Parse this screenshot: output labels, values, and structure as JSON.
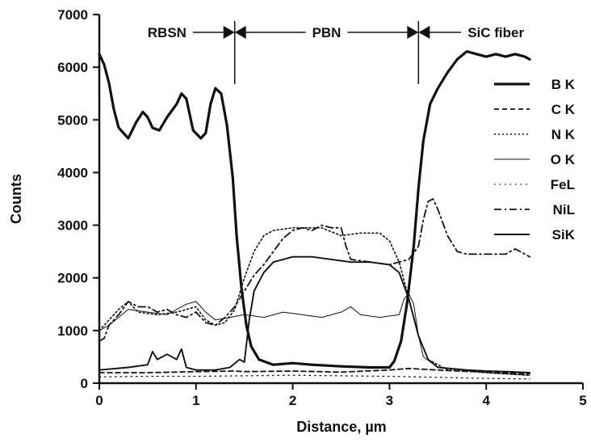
{
  "chart_data": {
    "type": "line",
    "title": "",
    "xlabel": "Distance, µm",
    "ylabel": "Counts",
    "xlim": [
      0,
      5
    ],
    "ylim": [
      0,
      7000
    ],
    "x_ticks": [
      "0",
      "1",
      "2",
      "3",
      "4",
      "5"
    ],
    "y_ticks": [
      "0",
      "1000",
      "2000",
      "3000",
      "4000",
      "5000",
      "6000",
      "7000"
    ],
    "grid": false,
    "legend_position": "right",
    "regions": [
      {
        "label": "RBSN",
        "from": 0,
        "to": 1.4
      },
      {
        "label": "PBN",
        "from": 1.4,
        "to": 3.3
      },
      {
        "label": "SiC fiber",
        "from": 3.3,
        "to": 5
      }
    ],
    "series": [
      {
        "name": "B K",
        "style": "thick-solid",
        "points": [
          [
            0,
            6250
          ],
          [
            0.05,
            6050
          ],
          [
            0.1,
            5700
          ],
          [
            0.15,
            5200
          ],
          [
            0.2,
            4850
          ],
          [
            0.3,
            4650
          ],
          [
            0.38,
            4950
          ],
          [
            0.45,
            5150
          ],
          [
            0.5,
            5050
          ],
          [
            0.55,
            4850
          ],
          [
            0.62,
            4800
          ],
          [
            0.7,
            5050
          ],
          [
            0.8,
            5300
          ],
          [
            0.85,
            5500
          ],
          [
            0.9,
            5400
          ],
          [
            0.97,
            4800
          ],
          [
            1.05,
            4650
          ],
          [
            1.1,
            4750
          ],
          [
            1.15,
            5300
          ],
          [
            1.2,
            5600
          ],
          [
            1.26,
            5500
          ],
          [
            1.32,
            4900
          ],
          [
            1.38,
            3900
          ],
          [
            1.42,
            2800
          ],
          [
            1.47,
            1800
          ],
          [
            1.52,
            1100
          ],
          [
            1.57,
            700
          ],
          [
            1.65,
            450
          ],
          [
            1.8,
            350
          ],
          [
            2.0,
            380
          ],
          [
            2.2,
            350
          ],
          [
            2.5,
            320
          ],
          [
            2.8,
            300
          ],
          [
            3.0,
            300
          ],
          [
            3.05,
            420
          ],
          [
            3.12,
            800
          ],
          [
            3.18,
            1500
          ],
          [
            3.25,
            2600
          ],
          [
            3.3,
            3700
          ],
          [
            3.35,
            4600
          ],
          [
            3.42,
            5300
          ],
          [
            3.5,
            5600
          ],
          [
            3.6,
            5900
          ],
          [
            3.7,
            6150
          ],
          [
            3.8,
            6300
          ],
          [
            3.9,
            6250
          ],
          [
            4.0,
            6200
          ],
          [
            4.1,
            6250
          ],
          [
            4.2,
            6200
          ],
          [
            4.3,
            6250
          ],
          [
            4.4,
            6200
          ],
          [
            4.45,
            6150
          ]
        ]
      },
      {
        "name": "C K",
        "style": "dashed",
        "points": [
          [
            0,
            200
          ],
          [
            0.5,
            200
          ],
          [
            1.0,
            220
          ],
          [
            1.4,
            230
          ],
          [
            1.5,
            220
          ],
          [
            2.0,
            230
          ],
          [
            2.5,
            210
          ],
          [
            3.0,
            250
          ],
          [
            3.2,
            280
          ],
          [
            3.4,
            260
          ],
          [
            3.6,
            240
          ],
          [
            4.0,
            210
          ],
          [
            4.45,
            180
          ]
        ]
      },
      {
        "name": "N K",
        "style": "dotted",
        "points": [
          [
            0,
            1000
          ],
          [
            0.2,
            1400
          ],
          [
            0.3,
            1550
          ],
          [
            0.4,
            1350
          ],
          [
            0.6,
            1300
          ],
          [
            0.8,
            1350
          ],
          [
            1.0,
            1450
          ],
          [
            1.1,
            1200
          ],
          [
            1.2,
            1100
          ],
          [
            1.3,
            1150
          ],
          [
            1.4,
            1400
          ],
          [
            1.5,
            2000
          ],
          [
            1.6,
            2500
          ],
          [
            1.7,
            2800
          ],
          [
            1.8,
            2900
          ],
          [
            2.0,
            2950
          ],
          [
            2.3,
            2950
          ],
          [
            2.5,
            2800
          ],
          [
            2.7,
            2850
          ],
          [
            2.9,
            2850
          ],
          [
            3.0,
            2700
          ],
          [
            3.1,
            2300
          ],
          [
            3.2,
            1600
          ],
          [
            3.3,
            900
          ],
          [
            3.4,
            450
          ],
          [
            3.6,
            250
          ],
          [
            4.0,
            200
          ],
          [
            4.45,
            150
          ]
        ]
      },
      {
        "name": "O K",
        "style": "thin-solid",
        "points": [
          [
            0,
            1000
          ],
          [
            0.1,
            1100
          ],
          [
            0.2,
            1250
          ],
          [
            0.3,
            1400
          ],
          [
            0.5,
            1350
          ],
          [
            0.7,
            1300
          ],
          [
            0.9,
            1500
          ],
          [
            1.0,
            1550
          ],
          [
            1.1,
            1350
          ],
          [
            1.2,
            1200
          ],
          [
            1.35,
            1250
          ],
          [
            1.5,
            1300
          ],
          [
            1.7,
            1250
          ],
          [
            1.9,
            1350
          ],
          [
            2.1,
            1300
          ],
          [
            2.3,
            1250
          ],
          [
            2.5,
            1350
          ],
          [
            2.6,
            1450
          ],
          [
            2.7,
            1300
          ],
          [
            2.9,
            1250
          ],
          [
            3.1,
            1300
          ],
          [
            3.15,
            1600
          ],
          [
            3.2,
            1700
          ],
          [
            3.25,
            1500
          ],
          [
            3.3,
            900
          ],
          [
            3.35,
            500
          ],
          [
            3.5,
            300
          ],
          [
            4.0,
            200
          ],
          [
            4.45,
            150
          ]
        ]
      },
      {
        "name": "FeL",
        "style": "sparse-dotted",
        "points": [
          [
            0,
            120
          ],
          [
            0.5,
            130
          ],
          [
            1.0,
            130
          ],
          [
            1.5,
            140
          ],
          [
            2.0,
            150
          ],
          [
            2.5,
            140
          ],
          [
            3.0,
            130
          ],
          [
            3.5,
            110
          ],
          [
            4.0,
            90
          ],
          [
            4.45,
            80
          ]
        ]
      },
      {
        "name": "NiL",
        "style": "dash-dot",
        "points": [
          [
            0,
            800
          ],
          [
            0.05,
            850
          ],
          [
            0.1,
            1100
          ],
          [
            0.2,
            1300
          ],
          [
            0.3,
            1550
          ],
          [
            0.4,
            1450
          ],
          [
            0.5,
            1450
          ],
          [
            0.6,
            1350
          ],
          [
            0.7,
            1400
          ],
          [
            0.8,
            1300
          ],
          [
            0.9,
            1250
          ],
          [
            1.0,
            1350
          ],
          [
            1.1,
            1150
          ],
          [
            1.2,
            1100
          ],
          [
            1.3,
            1250
          ],
          [
            1.4,
            1450
          ],
          [
            1.5,
            1750
          ],
          [
            1.6,
            2050
          ],
          [
            1.7,
            2250
          ],
          [
            1.8,
            2500
          ],
          [
            1.9,
            2750
          ],
          [
            2.0,
            2900
          ],
          [
            2.1,
            2950
          ],
          [
            2.2,
            2900
          ],
          [
            2.3,
            3000
          ],
          [
            2.4,
            2950
          ],
          [
            2.5,
            2950
          ],
          [
            2.55,
            2600
          ],
          [
            2.6,
            2350
          ],
          [
            2.8,
            2300
          ],
          [
            3.0,
            2250
          ],
          [
            3.2,
            2350
          ],
          [
            3.3,
            2600
          ],
          [
            3.35,
            3100
          ],
          [
            3.4,
            3450
          ],
          [
            3.45,
            3500
          ],
          [
            3.5,
            3300
          ],
          [
            3.6,
            2800
          ],
          [
            3.7,
            2500
          ],
          [
            3.8,
            2450
          ],
          [
            4.0,
            2450
          ],
          [
            4.2,
            2450
          ],
          [
            4.3,
            2550
          ],
          [
            4.45,
            2400
          ]
        ]
      },
      {
        "name": "SiK",
        "style": "medium-solid",
        "points": [
          [
            0,
            250
          ],
          [
            0.3,
            300
          ],
          [
            0.5,
            350
          ],
          [
            0.55,
            600
          ],
          [
            0.6,
            450
          ],
          [
            0.7,
            550
          ],
          [
            0.8,
            450
          ],
          [
            0.85,
            650
          ],
          [
            0.9,
            300
          ],
          [
            1.0,
            250
          ],
          [
            1.2,
            250
          ],
          [
            1.35,
            300
          ],
          [
            1.45,
            450
          ],
          [
            1.5,
            400
          ],
          [
            1.55,
            1200
          ],
          [
            1.6,
            1750
          ],
          [
            1.7,
            2100
          ],
          [
            1.8,
            2300
          ],
          [
            1.9,
            2350
          ],
          [
            2.0,
            2400
          ],
          [
            2.2,
            2400
          ],
          [
            2.4,
            2350
          ],
          [
            2.6,
            2300
          ],
          [
            2.8,
            2300
          ],
          [
            3.0,
            2250
          ],
          [
            3.1,
            2100
          ],
          [
            3.2,
            1600
          ],
          [
            3.3,
            900
          ],
          [
            3.4,
            450
          ],
          [
            3.5,
            300
          ],
          [
            3.8,
            250
          ],
          [
            4.0,
            230
          ],
          [
            4.2,
            220
          ],
          [
            4.45,
            200
          ]
        ]
      }
    ]
  }
}
